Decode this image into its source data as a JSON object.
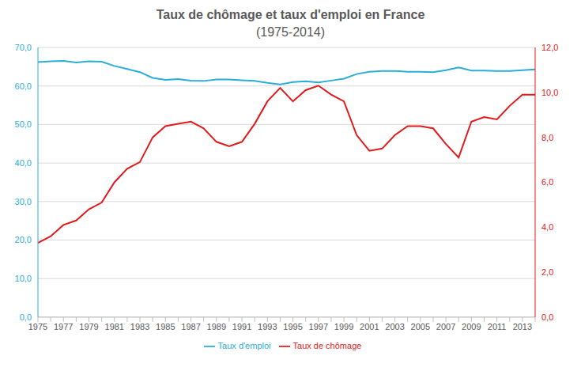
{
  "chart_data": {
    "type": "line",
    "title": "Taux de chômage et taux d'emploi en France",
    "subtitle": "(1975-2014)",
    "categories": [
      "1975",
      null,
      "1977",
      null,
      "1979",
      null,
      "1981",
      null,
      "1983",
      null,
      "1985",
      null,
      "1987",
      null,
      "1989",
      null,
      "1991",
      null,
      "1993",
      null,
      "1995",
      null,
      "1997",
      null,
      "1999",
      null,
      "2001",
      null,
      "2003",
      null,
      "2005",
      null,
      "2007",
      null,
      "2009",
      null,
      "2011",
      null,
      "2013",
      null
    ],
    "series": [
      {
        "name": "Taux d'emploi",
        "color": "#2aaed8",
        "axis": "y",
        "values": [
          66.2,
          66.4,
          66.5,
          66.1,
          66.4,
          66.3,
          65.2,
          64.4,
          63.6,
          62.1,
          61.6,
          61.8,
          61.4,
          61.3,
          61.7,
          61.7,
          61.5,
          61.3,
          60.8,
          60.4,
          61.0,
          61.2,
          60.9,
          61.4,
          61.9,
          63.1,
          63.7,
          63.9,
          63.9,
          63.7,
          63.7,
          63.6,
          64.1,
          64.8,
          64.0,
          64.0,
          63.9,
          63.9,
          64.1,
          64.3
        ]
      },
      {
        "name": "Taux de chômage",
        "color": "#e31a1c",
        "axis": "y2",
        "values": [
          3.3,
          3.6,
          4.1,
          4.3,
          4.8,
          5.1,
          6.0,
          6.6,
          6.9,
          8.0,
          8.5,
          8.6,
          8.7,
          8.4,
          7.8,
          7.6,
          7.8,
          8.6,
          9.6,
          10.2,
          9.6,
          10.1,
          10.3,
          9.9,
          9.6,
          8.1,
          7.4,
          7.5,
          8.1,
          8.5,
          8.5,
          8.4,
          7.7,
          7.1,
          8.7,
          8.9,
          8.8,
          9.4,
          9.9,
          9.9
        ]
      }
    ],
    "ylim": [
      0,
      70
    ],
    "yticks": [
      {
        "value": 0,
        "label": "0,0"
      },
      {
        "value": 10,
        "label": "10,0"
      },
      {
        "value": 20,
        "label": "20,0"
      },
      {
        "value": 30,
        "label": "30,0"
      },
      {
        "value": 40,
        "label": "40,0"
      },
      {
        "value": 50,
        "label": "50,0"
      },
      {
        "value": 60,
        "label": "60,0"
      },
      {
        "value": 70,
        "label": "70,0"
      }
    ],
    "y2lim": [
      0,
      12
    ],
    "y2ticks": [
      {
        "value": 0,
        "label": "0,0"
      },
      {
        "value": 2,
        "label": "2,0"
      },
      {
        "value": 4,
        "label": "4,0"
      },
      {
        "value": 6,
        "label": "6,0"
      },
      {
        "value": 8,
        "label": "8,0"
      },
      {
        "value": 10,
        "label": "10,0"
      },
      {
        "value": 12,
        "label": "12,0"
      }
    ],
    "grid": true,
    "legend": "bottom"
  }
}
